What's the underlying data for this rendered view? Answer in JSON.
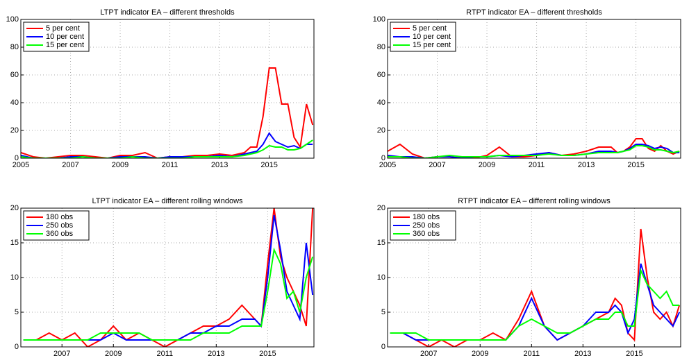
{
  "chart_data": [
    {
      "type": "line",
      "title": "LTPT indicator EA – different thresholds",
      "x": [
        2005,
        2005.5,
        2006,
        2006.5,
        2007,
        2007.5,
        2008,
        2008.5,
        2009,
        2009.5,
        2010,
        2010.5,
        2011,
        2011.5,
        2012,
        2012.5,
        2013,
        2013.5,
        2014,
        2014.25,
        2014.5,
        2014.75,
        2015,
        2015.25,
        2015.5,
        2015.75,
        2016,
        2016.25,
        2016.5,
        2016.75
      ],
      "xlim": [
        2005,
        2016.8
      ],
      "xticks": [
        2005,
        2007,
        2009,
        2011,
        2013,
        2015
      ],
      "ylim": [
        0,
        100
      ],
      "yticks": [
        0,
        20,
        40,
        60,
        80,
        100
      ],
      "grid": true,
      "legend": "upper-left",
      "series": [
        {
          "name": "5 per cent",
          "color": "#ff0000",
          "values": [
            4,
            1,
            0,
            1,
            2,
            2,
            1,
            0,
            2,
            2,
            4,
            0,
            1,
            1,
            2,
            2,
            3,
            2,
            4,
            8,
            8,
            30,
            65,
            65,
            39,
            39,
            15,
            8,
            39,
            24
          ]
        },
        {
          "name": "10 per cent",
          "color": "#0000ff",
          "values": [
            2,
            0,
            0,
            0,
            1,
            1,
            0,
            0,
            1,
            1,
            1,
            0,
            1,
            1,
            1,
            1,
            2,
            1,
            3,
            4,
            5,
            10,
            18,
            12,
            10,
            8,
            9,
            7,
            10,
            10
          ]
        },
        {
          "name": "15 per cent",
          "color": "#00ff00",
          "values": [
            1,
            0,
            0,
            0,
            0,
            1,
            0,
            0,
            0,
            1,
            0,
            0,
            0,
            0,
            1,
            1,
            1,
            1,
            2,
            3,
            4,
            6,
            9,
            8,
            8,
            6,
            6,
            7,
            10,
            13
          ]
        }
      ]
    },
    {
      "type": "line",
      "title": "RTPT indicator EA – different thresholds",
      "x": [
        2005,
        2005.5,
        2006,
        2006.5,
        2007,
        2007.5,
        2008,
        2008.5,
        2009,
        2009.5,
        2010,
        2010.5,
        2011,
        2011.5,
        2012,
        2012.5,
        2013,
        2013.5,
        2014,
        2014.25,
        2014.5,
        2014.75,
        2015,
        2015.25,
        2015.5,
        2015.75,
        2016,
        2016.25,
        2016.5,
        2016.75
      ],
      "xlim": [
        2005,
        2016.8
      ],
      "xticks": [
        2005,
        2007,
        2009,
        2011,
        2013,
        2015
      ],
      "ylim": [
        0,
        100
      ],
      "yticks": [
        0,
        20,
        40,
        60,
        80,
        100
      ],
      "grid": true,
      "legend": "upper-left",
      "series": [
        {
          "name": "5 per cent",
          "color": "#ff0000",
          "values": [
            5,
            10,
            3,
            0,
            1,
            1,
            0,
            0,
            2,
            8,
            1,
            1,
            2,
            4,
            2,
            3,
            5,
            8,
            8,
            4,
            5,
            8,
            14,
            14,
            7,
            5,
            9,
            5,
            3,
            5
          ]
        },
        {
          "name": "10 per cent",
          "color": "#0000ff",
          "values": [
            2,
            1,
            1,
            0,
            1,
            1,
            0,
            1,
            1,
            2,
            1,
            2,
            3,
            4,
            2,
            2,
            3,
            5,
            5,
            4,
            5,
            7,
            10,
            10,
            9,
            7,
            8,
            7,
            4,
            4
          ]
        },
        {
          "name": "15 per cent",
          "color": "#00ff00",
          "values": [
            1,
            1,
            0,
            0,
            1,
            2,
            1,
            1,
            1,
            2,
            2,
            2,
            2,
            3,
            2,
            2,
            3,
            4,
            4,
            4,
            5,
            6,
            9,
            9,
            8,
            6,
            6,
            5,
            4,
            5
          ]
        }
      ]
    },
    {
      "type": "line",
      "title": "LTPT indicator EA – different rolling windows",
      "x": [
        2005.5,
        2006,
        2006.5,
        2007,
        2007.5,
        2008,
        2008.5,
        2009,
        2009.5,
        2010,
        2010.5,
        2011,
        2011.5,
        2012,
        2012.5,
        2013,
        2013.5,
        2014,
        2014.25,
        2014.5,
        2014.75,
        2015,
        2015.25,
        2015.5,
        2015.75,
        2016,
        2016.25,
        2016.5,
        2016.75
      ],
      "xlim": [
        2005.4,
        2016.8
      ],
      "xticks": [
        2007,
        2009,
        2011,
        2013,
        2015
      ],
      "ylim": [
        0,
        20
      ],
      "yticks": [
        0,
        5,
        10,
        15,
        20
      ],
      "grid": true,
      "legend": "upper-left",
      "series": [
        {
          "name": "180 obs",
          "color": "#ff0000",
          "values": [
            1,
            1,
            2,
            1,
            2,
            0,
            1,
            3,
            1,
            2,
            1,
            0,
            1,
            2,
            3,
            3,
            4,
            6,
            5,
            4,
            3,
            12,
            20,
            13,
            10,
            8,
            6,
            3,
            20
          ]
        },
        {
          "name": "250 obs",
          "color": "#0000ff",
          "values": [
            1,
            1,
            1,
            1,
            1,
            1,
            1,
            2,
            1,
            1,
            1,
            1,
            1,
            2,
            2,
            3,
            3,
            4,
            4,
            4,
            3,
            10,
            19,
            14,
            8,
            6,
            4,
            15,
            7.5
          ]
        },
        {
          "name": "360 obs",
          "color": "#00ff00",
          "values": [
            1,
            1,
            1,
            1,
            1,
            1,
            2,
            2,
            2,
            2,
            1,
            1,
            1,
            1,
            2,
            2,
            2,
            3,
            3,
            3,
            3,
            8,
            14,
            12,
            7,
            8,
            5,
            10,
            13
          ]
        }
      ]
    },
    {
      "type": "line",
      "title": "RTPT indicator EA – different rolling windows",
      "x": [
        2005.5,
        2006,
        2006.5,
        2007,
        2007.5,
        2008,
        2008.5,
        2009,
        2009.5,
        2010,
        2010.5,
        2011,
        2011.5,
        2012,
        2012.5,
        2013,
        2013.5,
        2014,
        2014.25,
        2014.5,
        2014.75,
        2015,
        2015.25,
        2015.5,
        2015.75,
        2016,
        2016.25,
        2016.5,
        2016.75
      ],
      "xlim": [
        2005.4,
        2016.8
      ],
      "xticks": [
        2007,
        2009,
        2011,
        2013,
        2015
      ],
      "ylim": [
        0,
        20
      ],
      "yticks": [
        0,
        5,
        10,
        15,
        20
      ],
      "grid": true,
      "legend": "upper-left",
      "series": [
        {
          "name": "180 obs",
          "color": "#ff0000",
          "values": [
            2,
            2,
            1,
            0,
            1,
            0,
            1,
            1,
            2,
            1,
            4,
            8,
            3,
            1,
            2,
            3,
            4,
            5,
            7,
            6,
            2,
            1,
            17,
            10,
            5,
            4,
            5,
            3,
            6
          ]
        },
        {
          "name": "250 obs",
          "color": "#0000ff",
          "values": [
            2,
            2,
            1,
            1,
            1,
            1,
            1,
            1,
            1,
            1,
            3,
            7,
            3,
            1,
            2,
            3,
            5,
            5,
            6,
            5,
            2,
            4,
            12,
            9,
            6,
            5,
            4,
            3,
            5
          ]
        },
        {
          "name": "360 obs",
          "color": "#00ff00",
          "values": [
            2,
            2,
            2,
            1,
            1,
            1,
            1,
            1,
            1,
            1,
            3,
            4,
            3,
            2,
            2,
            3,
            4,
            4,
            5,
            5,
            3,
            3,
            11,
            9,
            8,
            7,
            8,
            6,
            6
          ]
        }
      ]
    }
  ]
}
